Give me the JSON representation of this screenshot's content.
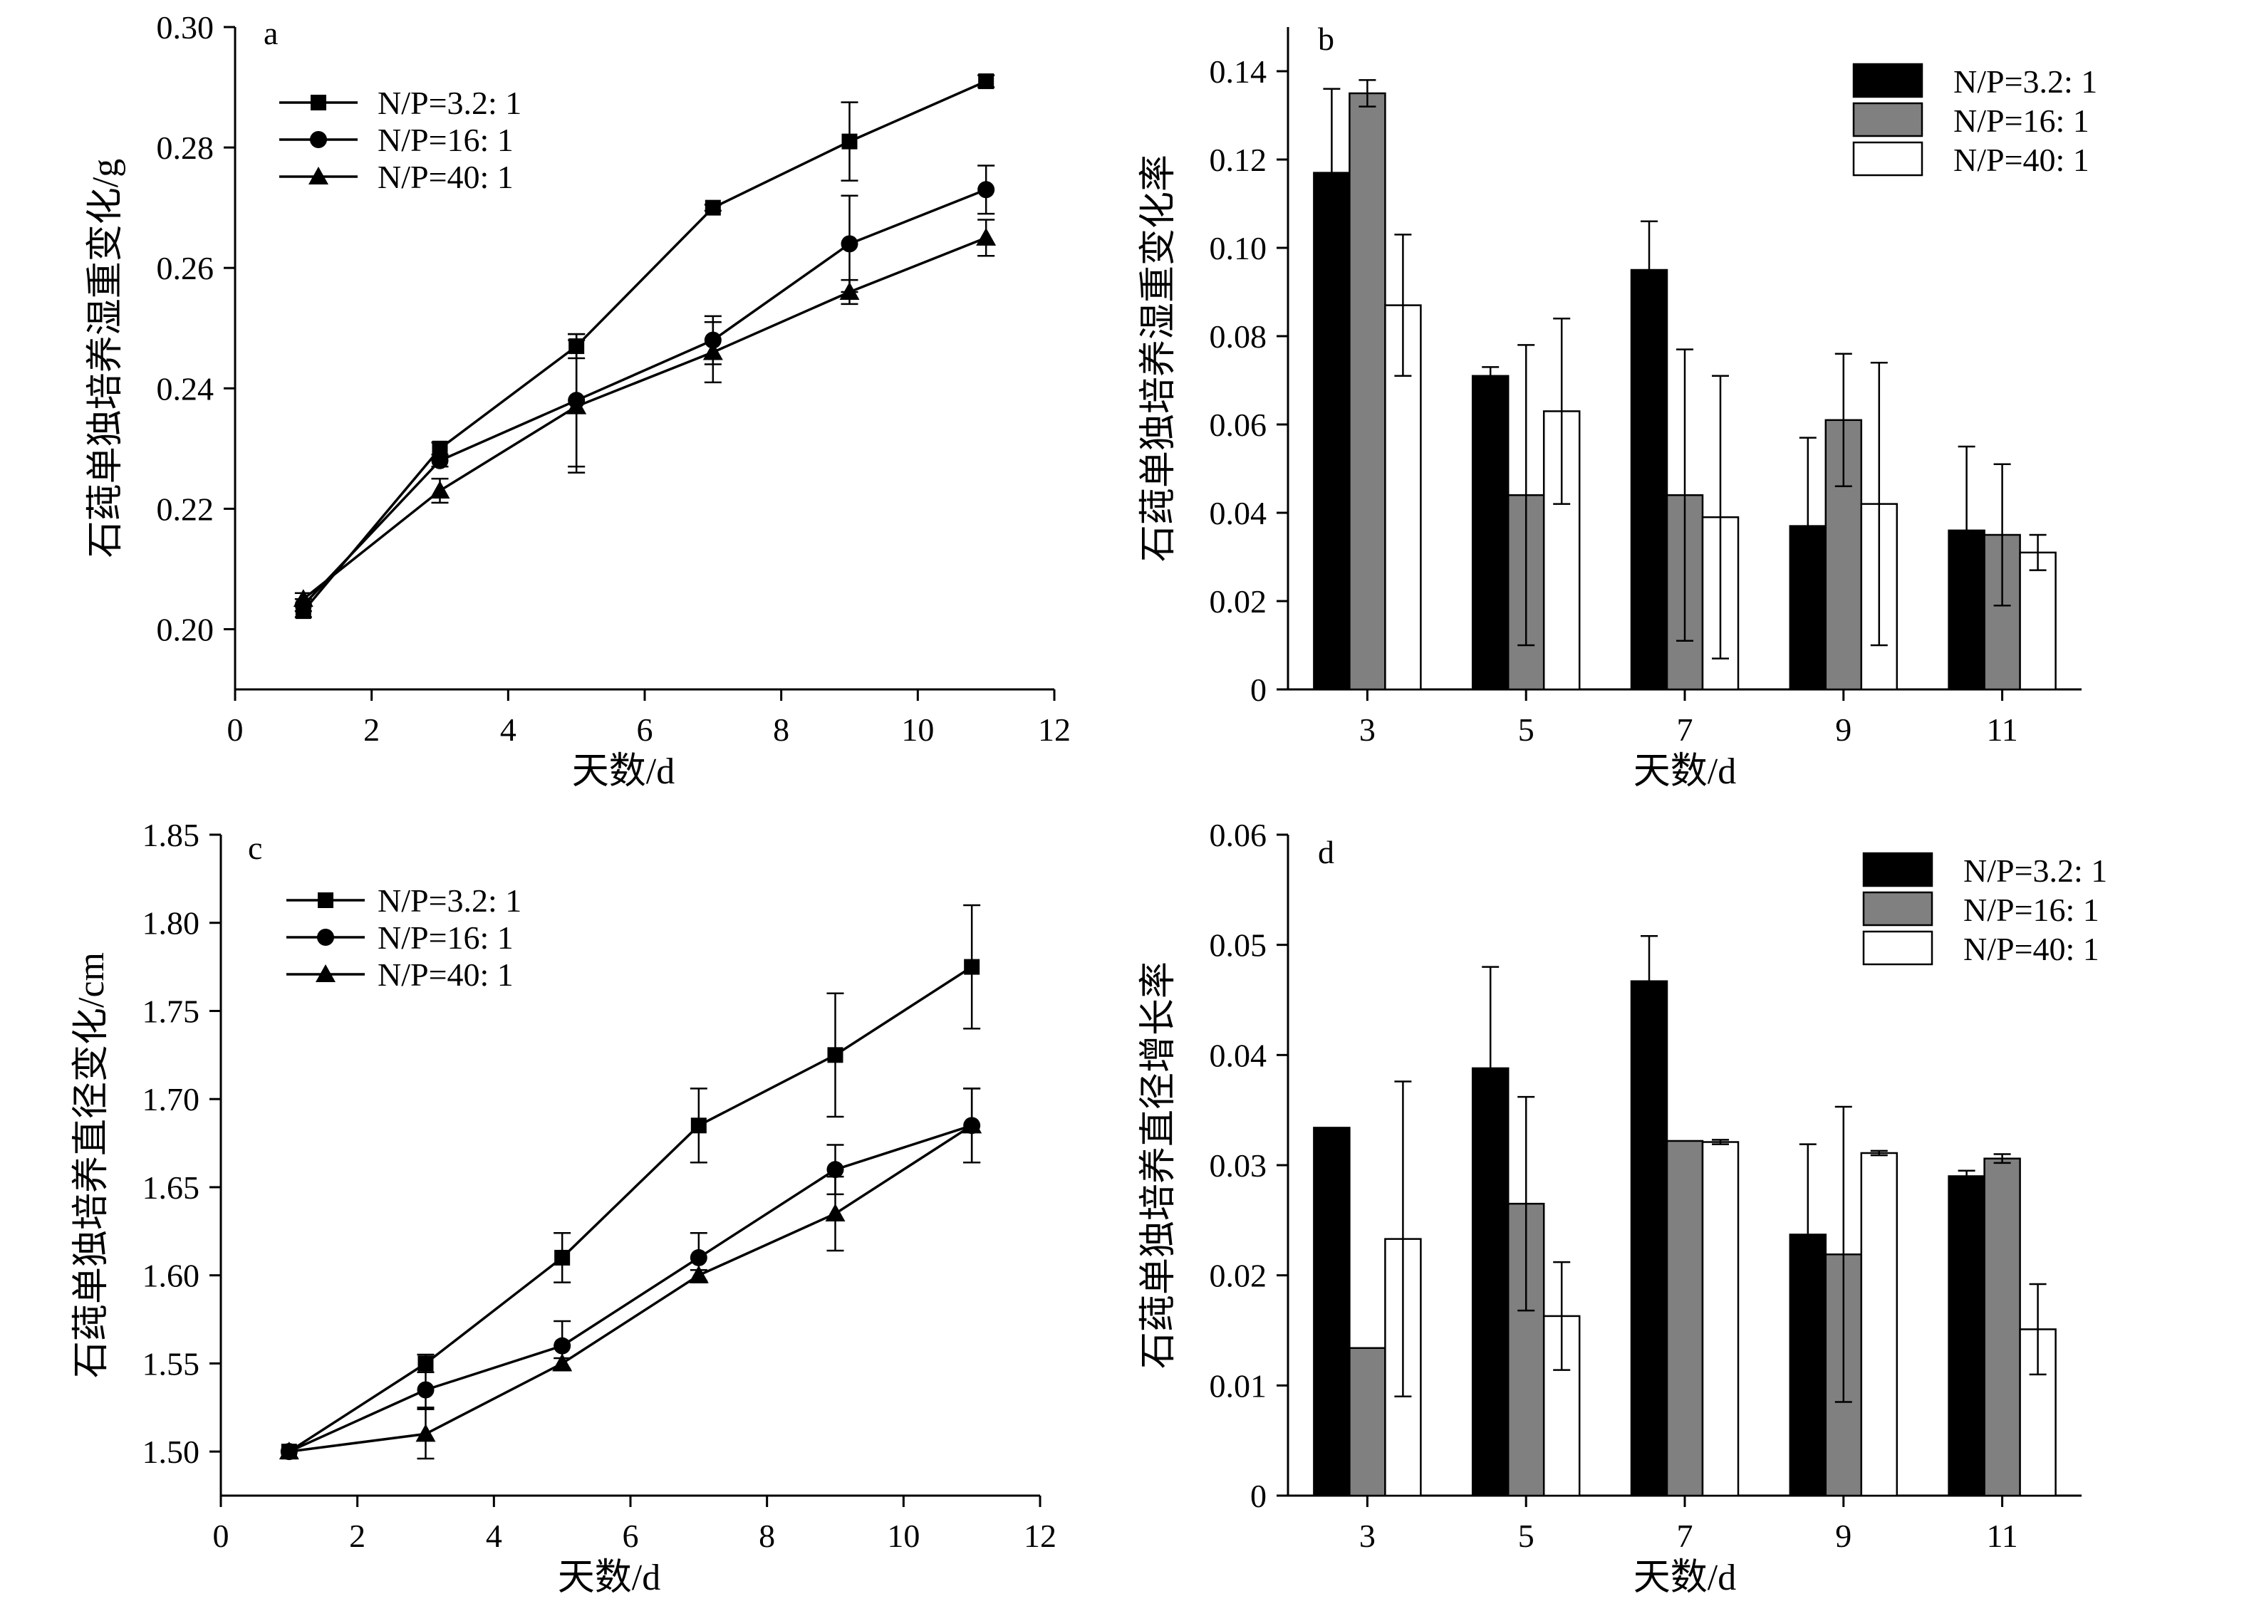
{
  "chart_data": [
    {
      "panel": "a",
      "type": "line",
      "xlabel": "天数/d",
      "ylabel": "石莼单独培养湿重变化/g",
      "xlim": [
        0,
        12
      ],
      "ylim": [
        0.19,
        0.3
      ],
      "xticks": [
        0,
        2,
        4,
        6,
        8,
        10,
        12
      ],
      "yticks": [
        0.2,
        0.22,
        0.24,
        0.26,
        0.28,
        0.3
      ],
      "ytick_labels": [
        "0.20",
        "0.22",
        "0.24",
        "0.26",
        "0.28",
        "0.30"
      ],
      "x": [
        1,
        3,
        5,
        7,
        9,
        11
      ],
      "legend_position": "top-left",
      "series": [
        {
          "name": "N/P=3.2: 1",
          "marker": "square",
          "values": [
            0.203,
            0.23,
            0.247,
            0.27,
            0.281,
            0.291
          ],
          "errors": [
            0.001,
            0.001,
            0.002,
            0.0005,
            0.0065,
            0.001
          ]
        },
        {
          "name": "N/P=16: 1",
          "marker": "circle",
          "values": [
            0.204,
            0.228,
            0.238,
            0.248,
            0.264,
            0.273
          ],
          "errors": [
            0.001,
            0.001,
            0.011,
            0.004,
            0.008,
            0.004
          ]
        },
        {
          "name": "N/P=40: 1",
          "marker": "triangle",
          "values": [
            0.205,
            0.223,
            0.237,
            0.246,
            0.256,
            0.265
          ],
          "errors": [
            0.001,
            0.002,
            0.011,
            0.005,
            0.002,
            0.003
          ]
        }
      ]
    },
    {
      "panel": "b",
      "type": "bar",
      "xlabel": "天数/d",
      "ylabel": "石莼单独培养湿重变化率",
      "ylim": [
        0,
        0.15
      ],
      "yticks": [
        0,
        0.02,
        0.04,
        0.06,
        0.08,
        0.1,
        0.12,
        0.14
      ],
      "ytick_labels": [
        "0",
        "0.02",
        "0.04",
        "0.06",
        "0.08",
        "0.10",
        "0.12",
        "0.14"
      ],
      "categories": [
        "3",
        "5",
        "7",
        "9",
        "11"
      ],
      "legend_position": "top-right",
      "series": [
        {
          "name": "N/P=3.2: 1",
          "color": "#000000",
          "values": [
            0.117,
            0.071,
            0.095,
            0.037,
            0.036
          ],
          "errors": [
            0.019,
            0.002,
            0.011,
            0.02,
            0.019
          ]
        },
        {
          "name": "N/P=16: 1",
          "color": "#808080",
          "values": [
            0.135,
            0.044,
            0.044,
            0.061,
            0.035
          ],
          "errors": [
            0.003,
            0.034,
            0.033,
            0.015,
            0.016
          ]
        },
        {
          "name": "N/P=40: 1",
          "color": "#ffffff",
          "values": [
            0.087,
            0.063,
            0.039,
            0.042,
            0.031
          ],
          "errors": [
            0.016,
            0.021,
            0.032,
            0.032,
            0.004
          ]
        }
      ]
    },
    {
      "panel": "c",
      "type": "line",
      "xlabel": "天数/d",
      "ylabel": "石莼单独培养直径变化/cm",
      "xlim": [
        0,
        12
      ],
      "ylim": [
        1.475,
        1.85
      ],
      "xticks": [
        0,
        2,
        4,
        6,
        8,
        10,
        12
      ],
      "yticks": [
        1.5,
        1.55,
        1.6,
        1.65,
        1.7,
        1.75,
        1.8,
        1.85
      ],
      "ytick_labels": [
        "1.50",
        "1.55",
        "1.60",
        "1.65",
        "1.70",
        "1.75",
        "1.80",
        "1.85"
      ],
      "x": [
        1,
        3,
        5,
        7,
        9,
        11
      ],
      "legend_position": "top-left",
      "series": [
        {
          "name": "N/P=3.2: 1",
          "marker": "square",
          "values": [
            1.5,
            1.55,
            1.61,
            1.685,
            1.725,
            1.775
          ],
          "errors": [
            0,
            0.005,
            0.014,
            0.021,
            0.035,
            0.035
          ]
        },
        {
          "name": "N/P=16: 1",
          "marker": "circle",
          "values": [
            1.5,
            1.535,
            1.56,
            1.61,
            1.66,
            1.685
          ],
          "errors": [
            0,
            0.01,
            0.014,
            0.014,
            0.014,
            0.021
          ]
        },
        {
          "name": "N/P=40: 1",
          "marker": "triangle",
          "values": [
            1.5,
            1.51,
            1.55,
            1.6,
            1.635,
            1.685
          ],
          "errors": [
            0,
            0.014,
            0.003,
            0.003,
            0.021,
            0.021
          ]
        }
      ]
    },
    {
      "panel": "d",
      "type": "bar",
      "xlabel": "天数/d",
      "ylabel": "石莼单独培养直径增长率",
      "ylim": [
        0,
        0.06
      ],
      "yticks": [
        0,
        0.01,
        0.02,
        0.03,
        0.04,
        0.05,
        0.06
      ],
      "ytick_labels": [
        "0",
        "0.01",
        "0.02",
        "0.03",
        "0.04",
        "0.05",
        "0.06"
      ],
      "categories": [
        "3",
        "5",
        "7",
        "9",
        "11"
      ],
      "legend_position": "top-right",
      "series": [
        {
          "name": "N/P=3.2: 1",
          "color": "#000000",
          "values": [
            0.0334,
            0.0388,
            0.0467,
            0.0237,
            0.029
          ],
          "errors": [
            0,
            0.0092,
            0.0041,
            0.0082,
            0.0005
          ]
        },
        {
          "name": "N/P=16: 1",
          "color": "#808080",
          "values": [
            0.0134,
            0.0265,
            0.0322,
            0.0219,
            0.0306
          ],
          "errors": [
            0,
            0.0097,
            0,
            0.0134,
            0.0004
          ]
        },
        {
          "name": "N/P=40: 1",
          "color": "#ffffff",
          "values": [
            0.0233,
            0.0163,
            0.0321,
            0.0311,
            0.0151
          ],
          "errors": [
            0.0143,
            0.0049,
            0.0002,
            0.0002,
            0.0041
          ]
        }
      ]
    }
  ]
}
